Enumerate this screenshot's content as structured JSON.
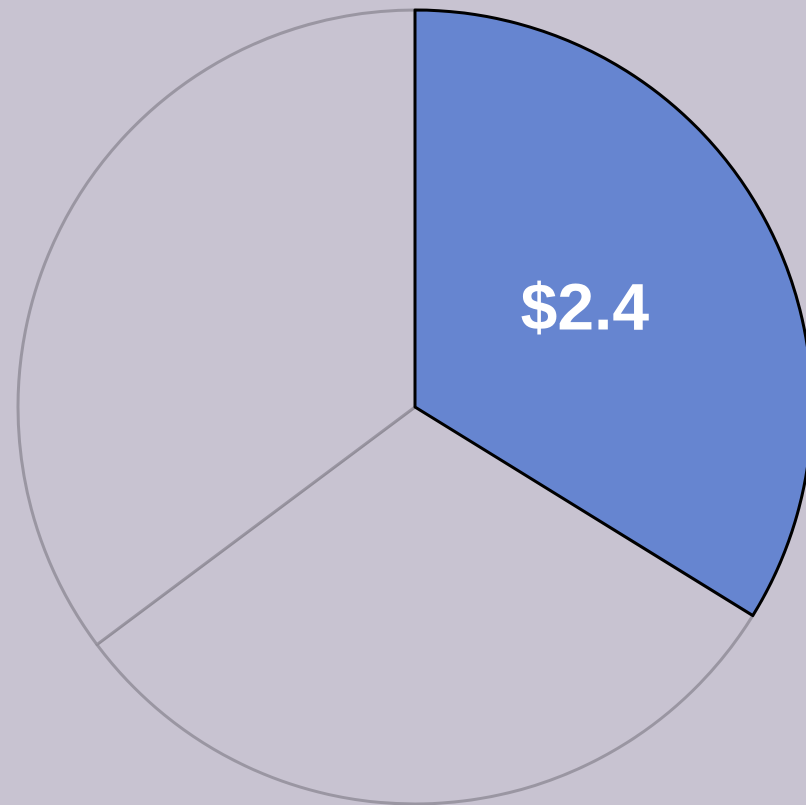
{
  "chart_data": {
    "type": "pie",
    "values": [
      2.4,
      2.2,
      2.5
    ],
    "value_labels": [
      "$2.4",
      null,
      null
    ],
    "colors": [
      "#6685d0",
      "#c8c3d1",
      "#c8c3d1"
    ],
    "highlight": 0
  }
}
